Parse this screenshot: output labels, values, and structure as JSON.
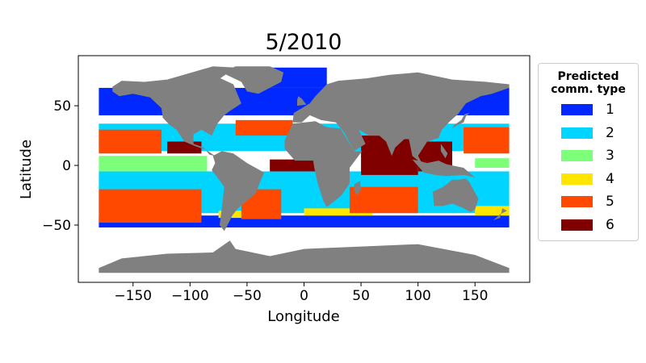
{
  "chart_data": {
    "type": "scatter",
    "title": "5/2010",
    "xlabel": "Longitude",
    "ylabel": "Latitude",
    "xlim": [
      -198,
      198
    ],
    "ylim": [
      -98,
      92
    ],
    "xticks": [
      -150,
      -100,
      -50,
      0,
      50,
      100,
      150
    ],
    "xtick_labels": [
      "−150",
      "−100",
      "−50",
      "0",
      "50",
      "100",
      "150"
    ],
    "yticks": [
      50,
      0,
      -50
    ],
    "ytick_labels": [
      "50",
      "0",
      "−50"
    ],
    "grid": false,
    "legend_position": "outside-right",
    "legend_title": [
      "Predicted",
      "comm. type"
    ],
    "land_color": "#808080",
    "series": [
      {
        "name": "1",
        "color": "#0028ff",
        "regions": [
          {
            "lon": [
              -180,
              180
            ],
            "lat": [
              42,
              65
            ]
          },
          {
            "lon": [
              -180,
              180
            ],
            "lat": [
              -52,
              -42
            ]
          },
          {
            "lon": [
              -40,
              20
            ],
            "lat": [
              65,
              82
            ]
          }
        ]
      },
      {
        "name": "2",
        "color": "#00d4ff",
        "regions": [
          {
            "lon": [
              -180,
              180
            ],
            "lat": [
              -40,
              -12
            ]
          },
          {
            "lon": [
              -180,
              180
            ],
            "lat": [
              12,
              35
            ]
          },
          {
            "lon": [
              -180,
              180
            ],
            "lat": [
              -14,
              -5
            ]
          }
        ]
      },
      {
        "name": "3",
        "color": "#7dff7a",
        "regions": [
          {
            "lon": [
              -180,
              -85
            ],
            "lat": [
              -5,
              8
            ]
          },
          {
            "lon": [
              150,
              180
            ],
            "lat": [
              -2,
              6
            ]
          }
        ]
      },
      {
        "name": "4",
        "color": "#ffe500",
        "regions": [
          {
            "lon": [
              -75,
              -40
            ],
            "lat": [
              -44,
              -38
            ]
          },
          {
            "lon": [
              0,
              60
            ],
            "lat": [
              -42,
              -36
            ]
          },
          {
            "lon": [
              150,
              180
            ],
            "lat": [
              -42,
              -34
            ]
          }
        ]
      },
      {
        "name": "5",
        "color": "#ff4800",
        "regions": [
          {
            "lon": [
              -180,
              -90
            ],
            "lat": [
              -48,
              -20
            ]
          },
          {
            "lon": [
              -180,
              -125
            ],
            "lat": [
              10,
              30
            ]
          },
          {
            "lon": [
              -55,
              -20
            ],
            "lat": [
              -45,
              -20
            ]
          },
          {
            "lon": [
              -60,
              -10
            ],
            "lat": [
              25,
              38
            ]
          },
          {
            "lon": [
              40,
              100
            ],
            "lat": [
              -40,
              -18
            ]
          },
          {
            "lon": [
              140,
              180
            ],
            "lat": [
              10,
              32
            ]
          }
        ]
      },
      {
        "name": "6",
        "color": "#800000",
        "regions": [
          {
            "lon": [
              50,
              100
            ],
            "lat": [
              -8,
              25
            ]
          },
          {
            "lon": [
              -30,
              10
            ],
            "lat": [
              -5,
              5
            ]
          },
          {
            "lon": [
              -120,
              -90
            ],
            "lat": [
              10,
              20
            ]
          },
          {
            "lon": [
              100,
              130
            ],
            "lat": [
              -5,
              20
            ]
          }
        ]
      }
    ]
  }
}
